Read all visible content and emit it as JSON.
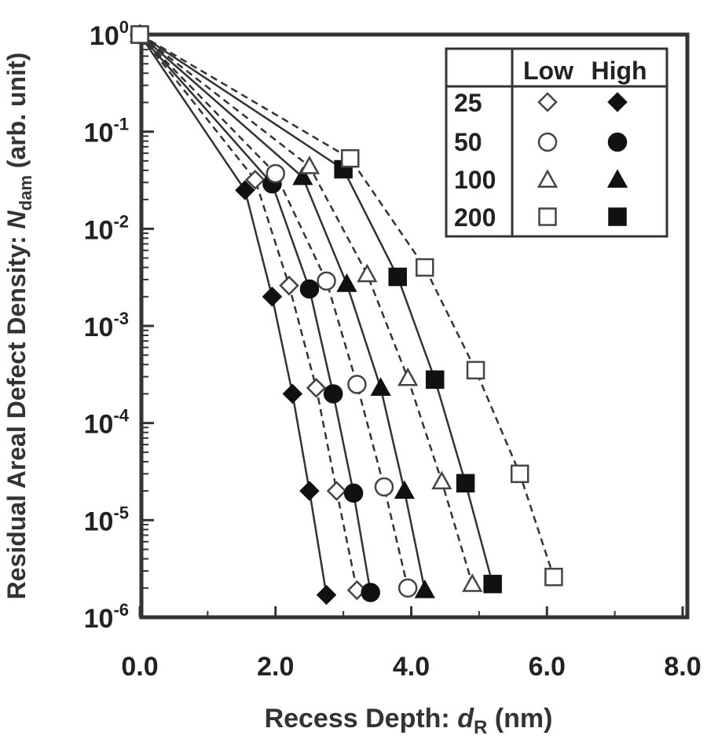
{
  "chart_data": {
    "type": "line",
    "title": "",
    "xlabel": "Recess Depth: dR (nm)",
    "xlabel_parts": {
      "main": "Recess Depth: ",
      "var": "d",
      "sub": "R",
      "unit": " (nm)"
    },
    "ylabel": "Residual Areal Defect Density: Ndam (arb. unit)",
    "ylabel_parts": {
      "main": "Residual Areal Defect Density: ",
      "var": "N",
      "sub": "dam",
      "unit": " (arb. unit)"
    },
    "xlim": [
      0,
      8
    ],
    "ylim": [
      1e-06,
      1
    ],
    "yscale": "log",
    "x_ticks": [
      "0.0",
      "2.0",
      "4.0",
      "6.0",
      "8.0"
    ],
    "x_tick_values": [
      0,
      2,
      4,
      6,
      8
    ],
    "y_ticks": [
      {
        "base": "10",
        "exp": "0"
      },
      {
        "base": "10",
        "exp": "-1"
      },
      {
        "base": "10",
        "exp": "-2"
      },
      {
        "base": "10",
        "exp": "-3"
      },
      {
        "base": "10",
        "exp": "-4"
      },
      {
        "base": "10",
        "exp": "-5"
      },
      {
        "base": "10",
        "exp": "-6"
      }
    ],
    "y_tick_exponents": [
      0,
      -1,
      -2,
      -3,
      -4,
      -5,
      -6
    ],
    "legend": {
      "placement": "top-right",
      "col_headers": [
        "Low",
        "High"
      ],
      "rows": [
        "25",
        "50",
        "100",
        "200"
      ]
    },
    "series": [
      {
        "name": "25",
        "level": "High",
        "marker": "diamond",
        "filled": true,
        "line": "solid",
        "x": [
          0.0,
          1.55,
          1.95,
          2.25,
          2.5,
          2.75
        ],
        "y": [
          1,
          0.025,
          0.002,
          0.0002,
          2e-05,
          1.7e-06
        ]
      },
      {
        "name": "25",
        "level": "Low",
        "marker": "diamond",
        "filled": false,
        "line": "dashed",
        "x": [
          0.0,
          1.7,
          2.2,
          2.6,
          2.9,
          3.2
        ],
        "y": [
          1,
          0.032,
          0.0026,
          0.00023,
          2e-05,
          1.9e-06
        ]
      },
      {
        "name": "50",
        "level": "High",
        "marker": "circle",
        "filled": true,
        "line": "solid",
        "x": [
          0.0,
          1.95,
          2.5,
          2.85,
          3.15,
          3.4
        ],
        "y": [
          1,
          0.029,
          0.0024,
          0.0002,
          1.9e-05,
          1.8e-06
        ]
      },
      {
        "name": "50",
        "level": "Low",
        "marker": "circle",
        "filled": false,
        "line": "dashed",
        "x": [
          0.0,
          2.0,
          2.75,
          3.2,
          3.6,
          3.95
        ],
        "y": [
          1,
          0.037,
          0.0029,
          0.00025,
          2.2e-05,
          2e-06
        ]
      },
      {
        "name": "100",
        "level": "High",
        "marker": "triangle",
        "filled": true,
        "line": "solid",
        "x": [
          0.0,
          2.4,
          3.05,
          3.55,
          3.9,
          4.2
        ],
        "y": [
          1,
          0.034,
          0.0027,
          0.00023,
          2e-05,
          1.9e-06
        ]
      },
      {
        "name": "100",
        "level": "Low",
        "marker": "triangle",
        "filled": false,
        "line": "dashed",
        "x": [
          0.0,
          2.5,
          3.35,
          3.95,
          4.45,
          4.9
        ],
        "y": [
          1,
          0.044,
          0.0034,
          0.00029,
          2.5e-05,
          2.2e-06
        ]
      },
      {
        "name": "200",
        "level": "High",
        "marker": "square",
        "filled": true,
        "line": "solid",
        "x": [
          0.0,
          3.0,
          3.8,
          4.35,
          4.8,
          5.2
        ],
        "y": [
          1,
          0.041,
          0.0032,
          0.00028,
          2.4e-05,
          2.2e-06
        ]
      },
      {
        "name": "200",
        "level": "Low",
        "marker": "square",
        "filled": false,
        "line": "dashed",
        "x": [
          0.0,
          3.1,
          4.2,
          4.95,
          5.6,
          6.1
        ],
        "y": [
          1,
          0.053,
          0.004,
          0.00035,
          3e-05,
          2.6e-06
        ]
      }
    ]
  }
}
